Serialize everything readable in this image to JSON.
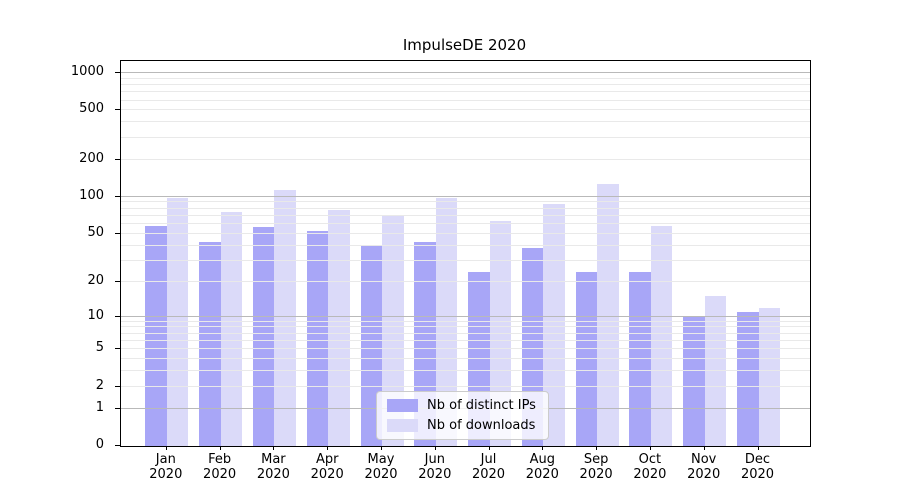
{
  "chart_data": {
    "type": "bar",
    "title": "ImpulseDE 2020",
    "categories": [
      [
        "Jan",
        "2020"
      ],
      [
        "Feb",
        "2020"
      ],
      [
        "Mar",
        "2020"
      ],
      [
        "Apr",
        "2020"
      ],
      [
        "May",
        "2020"
      ],
      [
        "Jun",
        "2020"
      ],
      [
        "Jul",
        "2020"
      ],
      [
        "Aug",
        "2020"
      ],
      [
        "Sep",
        "2020"
      ],
      [
        "Oct",
        "2020"
      ],
      [
        "Nov",
        "2020"
      ],
      [
        "Dec",
        "2020"
      ]
    ],
    "series": [
      {
        "name": "Nb of distinct IPs",
        "color": "#a8a6f7",
        "values": [
          58,
          43,
          57,
          53,
          40,
          43,
          24,
          38,
          24,
          24,
          10,
          11
        ]
      },
      {
        "name": "Nb of downloads",
        "color": "#dbdaf9",
        "values": [
          97,
          75,
          114,
          78,
          70,
          97,
          63,
          87,
          126,
          58,
          15,
          12
        ]
      }
    ],
    "xlabel": "",
    "ylabel": "",
    "yscale": "log1p",
    "ylim": [
      0,
      1250
    ],
    "yticks": [
      0,
      1,
      2,
      5,
      10,
      20,
      50,
      100,
      200,
      500,
      1000
    ],
    "grid": {
      "major": true,
      "minor": true
    },
    "legend_position": "lower center"
  }
}
